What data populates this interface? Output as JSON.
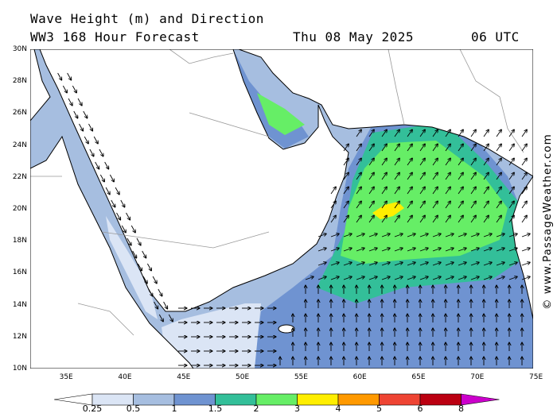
{
  "header": {
    "line1": "Wave Height (m) and Direction",
    "line2": "WW3 168 Hour Forecast",
    "date": "Thu 08 May 2025",
    "time": "06 UTC"
  },
  "credit": "© www.PassageWeather.com",
  "axes": {
    "lat_labels": [
      "30N",
      "28N",
      "26N",
      "24N",
      "22N",
      "20N",
      "18N",
      "16N",
      "14N",
      "12N",
      "10N"
    ],
    "lon_labels": [
      "35E",
      "40E",
      "45E",
      "50E",
      "55E",
      "60E",
      "65E",
      "70E",
      "75E"
    ]
  },
  "legend": {
    "colors": [
      "#ffffff",
      "#dbe5f5",
      "#a6bee0",
      "#6f93d1",
      "#33bf99",
      "#66ee66",
      "#ffee00",
      "#ff9900",
      "#ee4433",
      "#bb0011",
      "#cc00cc"
    ],
    "labels": [
      "0.25",
      "0.5",
      "1",
      "1.5",
      "2",
      "3",
      "4",
      "5",
      "6",
      "8"
    ]
  },
  "colors": {
    "land": "#ffffff",
    "coast": "#000000",
    "border": "#999999"
  }
}
